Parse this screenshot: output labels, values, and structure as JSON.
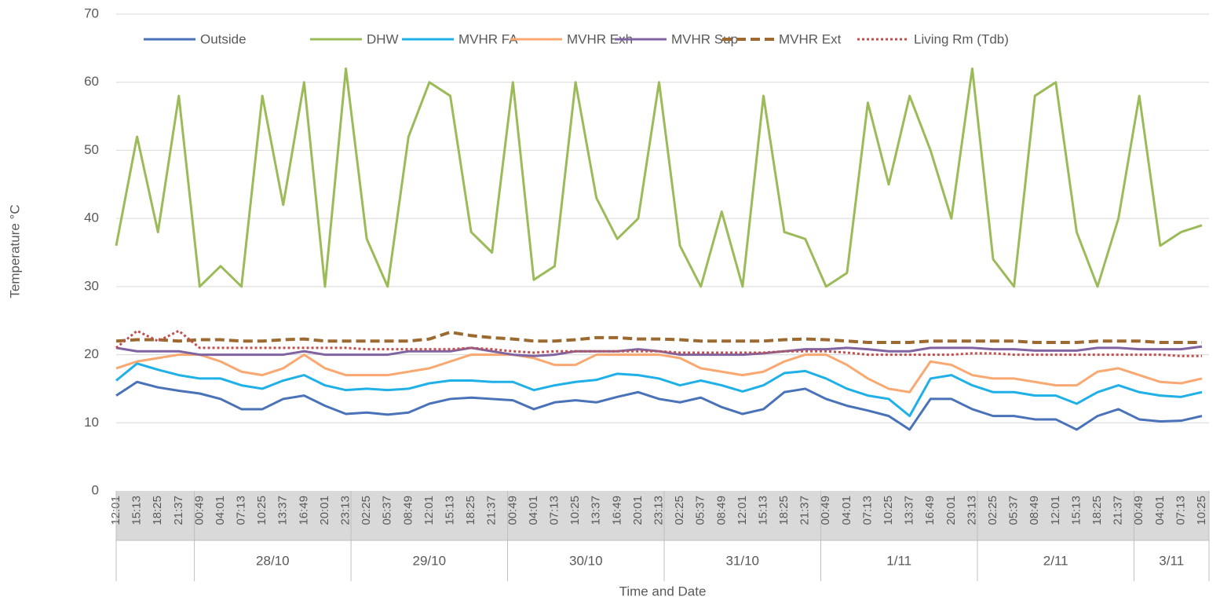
{
  "chart_data": {
    "type": "line",
    "x_label": "Time and Date",
    "y_label": "Temperature  °C",
    "categories": [
      "12:01",
      "15:13",
      "18:25",
      "21:37",
      "00:49",
      "04:01",
      "07:13",
      "10:25",
      "13:37",
      "16:49",
      "20:01",
      "23:13",
      "02:25",
      "05:37",
      "08:49",
      "12:01",
      "15:13",
      "18:25",
      "21:37",
      "00:49",
      "04:01",
      "07:13",
      "10:25",
      "13:37",
      "16:49",
      "20:01",
      "23:13",
      "02:25",
      "05:37",
      "08:49",
      "12:01",
      "15:13",
      "18:25",
      "21:37",
      "00:49",
      "04:01",
      "07:13",
      "10:25",
      "13:37",
      "16:49",
      "20:01",
      "23:13",
      "02:25",
      "05:37",
      "08:49",
      "12:01",
      "15:13",
      "18:25",
      "21:37",
      "00:49",
      "04:01",
      "07:13",
      "10:25"
    ],
    "date_groups": [
      null,
      "28/10",
      "29/10",
      "30/10",
      "31/10",
      "1/11",
      "2/11",
      "3/11"
    ],
    "ylim": [
      0,
      70
    ],
    "yticks": [
      0,
      10,
      20,
      30,
      40,
      50,
      60,
      70
    ],
    "legend": "top",
    "series": [
      {
        "name": "Outside",
        "color": "#4a72b8",
        "style": "solid",
        "values": [
          14,
          16,
          15.2,
          14.7,
          14.3,
          13.5,
          12,
          12,
          13.5,
          14,
          12.5,
          11.3,
          11.5,
          11.2,
          11.5,
          12.8,
          13.5,
          13.7,
          13.5,
          13.3,
          12,
          13,
          13.3,
          13,
          13.8,
          14.5,
          13.5,
          13,
          13.7,
          12.3,
          11.3,
          12,
          14.5,
          15,
          13.5,
          12.5,
          11.8,
          11,
          9,
          13.5,
          13.5,
          12,
          11,
          11,
          10.5,
          10.5,
          9,
          11,
          12,
          10.5,
          10.2,
          10.3,
          11
        ]
      },
      {
        "name": "DHW",
        "color": "#9bbb59",
        "style": "solid",
        "values": [
          36,
          52,
          38,
          58,
          30,
          33,
          30,
          58,
          42,
          60,
          30,
          62,
          37,
          30,
          52,
          60,
          58,
          38,
          35,
          60,
          31,
          33,
          60,
          43,
          37,
          40,
          60,
          36,
          30,
          41,
          30,
          58,
          38,
          37,
          30,
          32,
          57,
          45,
          58,
          50,
          40,
          62,
          34,
          30,
          58,
          60,
          38,
          30,
          40,
          58,
          36,
          38,
          39
        ]
      },
      {
        "name": "MVHR FA",
        "color": "#1fb0e8",
        "style": "solid",
        "values": [
          16.2,
          18.7,
          17.8,
          17,
          16.5,
          16.5,
          15.5,
          15,
          16.2,
          17,
          15.5,
          14.8,
          15,
          14.8,
          15,
          15.8,
          16.2,
          16.2,
          16,
          16,
          14.8,
          15.5,
          16,
          16.3,
          17.2,
          17,
          16.5,
          15.5,
          16.2,
          15.5,
          14.6,
          15.5,
          17.3,
          17.6,
          16.5,
          15,
          14,
          13.5,
          11,
          16.5,
          17,
          15.5,
          14.5,
          14.5,
          14,
          14,
          12.8,
          14.5,
          15.5,
          14.5,
          14,
          13.8,
          14.5
        ]
      },
      {
        "name": "MVHR Exh",
        "color": "#f8a870",
        "style": "solid",
        "values": [
          18,
          19,
          19.5,
          20,
          20,
          19,
          17.5,
          17,
          18,
          20,
          18,
          17,
          17,
          17,
          17.5,
          18,
          19,
          20,
          20,
          20,
          19.5,
          18.5,
          18.5,
          20,
          20,
          20,
          20,
          19.5,
          18,
          17.5,
          17,
          17.5,
          19,
          20,
          20,
          18.5,
          16.5,
          15,
          14.5,
          19,
          18.5,
          17,
          16.5,
          16.5,
          16,
          15.5,
          15.5,
          17.5,
          18,
          17,
          16,
          15.8,
          16.5
        ]
      },
      {
        "name": "MVHR Sup",
        "color": "#8064a2",
        "style": "solid",
        "values": [
          21,
          20.5,
          20.5,
          20.5,
          20,
          20,
          20,
          20,
          20,
          20.5,
          20,
          20,
          20,
          20,
          20.5,
          20.5,
          20.5,
          21,
          20.5,
          20,
          19.8,
          20,
          20.5,
          20.5,
          20.5,
          20.8,
          20.5,
          20,
          20,
          20,
          20,
          20.2,
          20.5,
          20.8,
          20.8,
          21,
          20.8,
          20.5,
          20.5,
          21,
          21,
          21,
          20.8,
          20.8,
          20.6,
          20.6,
          20.6,
          21,
          21,
          20.8,
          20.8,
          20.8,
          21.2
        ]
      },
      {
        "name": "MVHR Ext",
        "color": "#9c6a30",
        "style": "dashed",
        "values": [
          22,
          22.2,
          22.2,
          22,
          22.2,
          22.2,
          22,
          22,
          22.2,
          22.3,
          22,
          22,
          22,
          22,
          22,
          22.3,
          23.3,
          22.8,
          22.5,
          22.3,
          22,
          22,
          22.2,
          22.5,
          22.5,
          22.3,
          22.3,
          22.2,
          22,
          22,
          22,
          22,
          22.2,
          22.3,
          22.2,
          22,
          21.8,
          21.8,
          21.8,
          22,
          22,
          22,
          22,
          22,
          21.8,
          21.8,
          21.8,
          22,
          22,
          22,
          21.8,
          21.8,
          21.8
        ]
      },
      {
        "name": "Living Rm (Tdb)",
        "color": "#c0504d",
        "style": "dotted",
        "values": [
          21,
          23.5,
          22,
          23.5,
          21,
          21,
          21,
          21,
          21,
          21,
          21,
          21,
          20.8,
          20.8,
          20.8,
          20.8,
          20.8,
          21,
          20.8,
          20.5,
          20.3,
          20.5,
          20.5,
          20.5,
          20.5,
          20.5,
          20.5,
          20.3,
          20.3,
          20.3,
          20.3,
          20.3,
          20.5,
          20.5,
          20.5,
          20.3,
          20,
          20,
          20,
          20,
          20,
          20.2,
          20.2,
          20,
          20,
          20,
          20,
          20,
          20,
          20,
          20,
          19.8,
          19.8
        ]
      }
    ]
  }
}
